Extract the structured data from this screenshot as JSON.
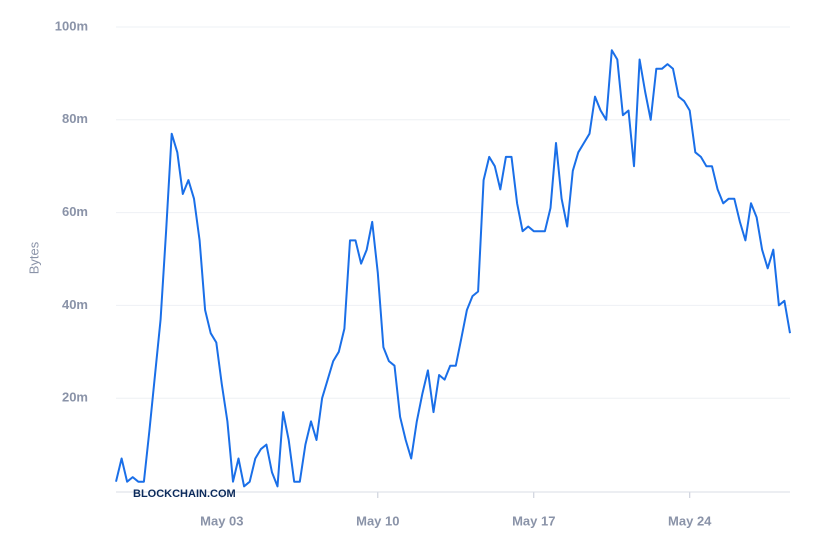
{
  "chart_data": {
    "type": "line",
    "y_label": "Bytes",
    "watermark": "BLOCKCHAIN.COM",
    "color": "#1a6fe8",
    "grid": true,
    "ylim": [
      0,
      100000000
    ],
    "yticks": [
      {
        "value": 20000000,
        "label": "20m"
      },
      {
        "value": 40000000,
        "label": "40m"
      },
      {
        "value": 60000000,
        "label": "60m"
      },
      {
        "value": 80000000,
        "label": "80m"
      },
      {
        "value": 100000000,
        "label": "100m"
      }
    ],
    "categories": [
      null,
      null,
      null,
      null,
      null,
      null,
      null,
      null,
      null,
      null,
      null,
      null,
      null,
      null,
      null,
      null,
      null,
      null,
      null,
      "May 03",
      null,
      null,
      null,
      null,
      null,
      null,
      null,
      null,
      null,
      null,
      null,
      null,
      null,
      null,
      null,
      null,
      null,
      null,
      null,
      null,
      null,
      null,
      null,
      null,
      null,
      null,
      null,
      "May 10",
      null,
      null,
      null,
      null,
      null,
      null,
      null,
      null,
      null,
      null,
      null,
      null,
      null,
      null,
      null,
      null,
      null,
      null,
      null,
      null,
      null,
      null,
      null,
      null,
      null,
      null,
      null,
      "May 17",
      null,
      null,
      null,
      null,
      null,
      null,
      null,
      null,
      null,
      null,
      null,
      null,
      null,
      null,
      null,
      null,
      null,
      null,
      null,
      null,
      null,
      null,
      null,
      null,
      null,
      null,
      null,
      "May 24",
      null,
      null,
      null,
      null,
      null,
      null,
      null,
      null,
      null,
      null,
      null,
      null,
      null,
      null,
      null,
      null,
      null,
      null
    ],
    "values": [
      2000000,
      7000000,
      2000000,
      3000000,
      2000000,
      2000000,
      13000000,
      25000000,
      37000000,
      56000000,
      77000000,
      73000000,
      64000000,
      67000000,
      63000000,
      54000000,
      39000000,
      34000000,
      32000000,
      23000000,
      15000000,
      2000000,
      7000000,
      1000000,
      2000000,
      7000000,
      9000000,
      10000000,
      4000000,
      1000000,
      17000000,
      11000000,
      2000000,
      2000000,
      10000000,
      15000000,
      11000000,
      20000000,
      24000000,
      28000000,
      30000000,
      35000000,
      54000000,
      54000000,
      49000000,
      52000000,
      58000000,
      47000000,
      31000000,
      28000000,
      27000000,
      16000000,
      11000000,
      7000000,
      15000000,
      21000000,
      26000000,
      17000000,
      25000000,
      24000000,
      27000000,
      27000000,
      33000000,
      39000000,
      42000000,
      43000000,
      67000000,
      72000000,
      70000000,
      65000000,
      72000000,
      72000000,
      62000000,
      56000000,
      57000000,
      56000000,
      56000000,
      56000000,
      61000000,
      75000000,
      63000000,
      57000000,
      69000000,
      73000000,
      75000000,
      77000000,
      85000000,
      82000000,
      80000000,
      95000000,
      93000000,
      81000000,
      82000000,
      70000000,
      93000000,
      86000000,
      80000000,
      91000000,
      91000000,
      92000000,
      91000000,
      85000000,
      84000000,
      82000000,
      73000000,
      72000000,
      70000000,
      70000000,
      65000000,
      62000000,
      63000000,
      63000000,
      58000000,
      54000000,
      62000000,
      59000000,
      52000000,
      48000000,
      52000000,
      40000000,
      41000000,
      34000000
    ]
  }
}
